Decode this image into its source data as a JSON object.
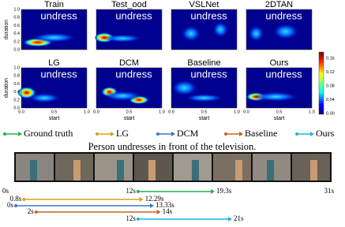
{
  "panels": [
    {
      "title": "Train",
      "overlay": "undress"
    },
    {
      "title": "Test_ood",
      "overlay": "undress"
    },
    {
      "title": "VSLNet",
      "overlay": "undress"
    },
    {
      "title": "2DTAN",
      "overlay": "undress"
    },
    {
      "title": "LG",
      "overlay": "undress"
    },
    {
      "title": "DCM",
      "overlay": "undress"
    },
    {
      "title": "Baseline",
      "overlay": "undress"
    },
    {
      "title": "Ours",
      "overlay": "undress"
    }
  ],
  "axes": {
    "y_label": "duration",
    "x_label": "start",
    "y_ticks": [
      "1.0",
      "0.8",
      "0.6",
      "0.4",
      "0.2",
      "0.0"
    ],
    "x_ticks": [
      "0.0",
      "0.5",
      "1.0"
    ]
  },
  "colorbar": {
    "ticks": [
      "0.16",
      "0.12",
      "0.08",
      "0.04",
      "0.00"
    ]
  },
  "legend": [
    {
      "label": "Ground truth",
      "color": "#22b14c"
    },
    {
      "label": "LG",
      "color": "#d9a21b"
    },
    {
      "label": "DCM",
      "color": "#3b76c4"
    },
    {
      "label": "Baseline",
      "color": "#c8641f"
    },
    {
      "label": "Ours",
      "color": "#22b3d8"
    }
  ],
  "query": "Person undresses in front of the television.",
  "timeline": {
    "start": {
      "value": 0,
      "label": "0s"
    },
    "end": {
      "value": 31,
      "label": "31s"
    },
    "segments": [
      {
        "start": {
          "value": 12,
          "label": "12s"
        },
        "end": {
          "value": 19.3,
          "label": "19.3s"
        }
      },
      {
        "start": {
          "value": 0.8,
          "label": "0.8s"
        },
        "end": {
          "value": 12.29,
          "label": "12.29s"
        }
      },
      {
        "start": {
          "value": 0,
          "label": "0s"
        },
        "end": {
          "value": 13.33,
          "label": "13.33s"
        }
      },
      {
        "start": {
          "value": 2,
          "label": "2s"
        },
        "end": {
          "value": 14,
          "label": "14s"
        }
      },
      {
        "start": {
          "value": 12,
          "label": "12s"
        },
        "end": {
          "value": 21,
          "label": "21s"
        }
      }
    ]
  }
}
